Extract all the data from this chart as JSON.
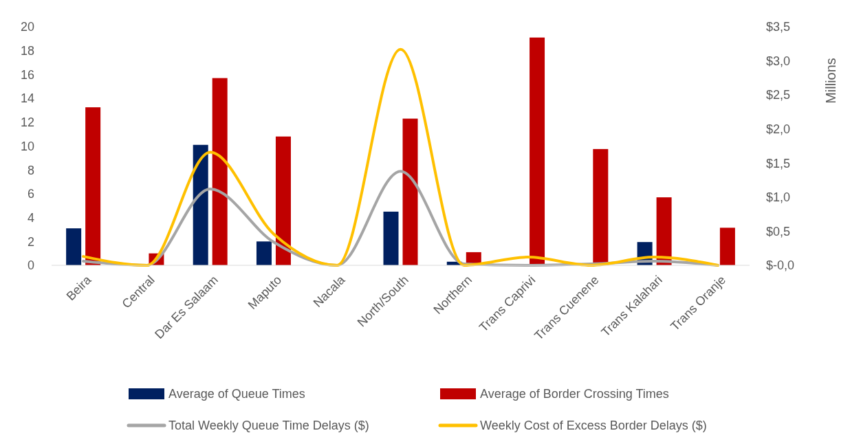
{
  "chart_data": {
    "type": "bar",
    "categories": [
      "Beira",
      "Central",
      "Dar Es Salaam",
      "Maputo",
      "Nacala",
      "North/South",
      "Northern",
      "Trans Caprivi",
      "Trans Cuenene",
      "Trans Kalahari",
      "Trans Oranje"
    ],
    "series": [
      {
        "name": "Average of Queue Times",
        "color": "#002060",
        "values": [
          3.1,
          0,
          10.1,
          2.0,
          0,
          4.5,
          0.3,
          0,
          0,
          1.95,
          0
        ]
      },
      {
        "name": "Average of Border Crossing Times",
        "color": "#c00000",
        "values": [
          13.25,
          1.0,
          15.7,
          10.8,
          0,
          12.3,
          1.1,
          19.1,
          9.75,
          5.7,
          3.15
        ]
      },
      {
        "name": "Total Weekly Queue Time Delays ($)",
        "type": "line",
        "axis": "y2",
        "color": "#a5a5a5",
        "values": [
          0.06,
          0,
          1.12,
          0.34,
          0,
          1.38,
          0.02,
          0,
          0.02,
          0.06,
          0
        ]
      },
      {
        "name": "Weekly Cost of Excess Border Delays ($)",
        "type": "line",
        "axis": "y2",
        "color": "#ffc000",
        "values": [
          0.13,
          0,
          1.66,
          0.46,
          0,
          3.17,
          0,
          0.12,
          0,
          0.12,
          0
        ]
      }
    ],
    "ylim": [
      0,
      20
    ],
    "yticks": [
      0,
      2,
      4,
      6,
      8,
      10,
      12,
      14,
      16,
      18,
      20
    ],
    "y2label": "Millions",
    "y2lim": [
      0,
      3.5
    ],
    "y2ticks": [
      {
        "value": 0,
        "label": "$-0,0"
      },
      {
        "value": 0.5,
        "label": "$0,5"
      },
      {
        "value": 1,
        "label": "$1,0"
      },
      {
        "value": 1.5,
        "label": "$1,5"
      },
      {
        "value": 2,
        "label": "$2,0"
      },
      {
        "value": 2.5,
        "label": "$2,5"
      },
      {
        "value": 3,
        "label": "$3,0"
      },
      {
        "value": 3.5,
        "label": "$3,5"
      }
    ],
    "grid": false,
    "legend": "bottom",
    "line_style": "solid",
    "marker": "none"
  }
}
